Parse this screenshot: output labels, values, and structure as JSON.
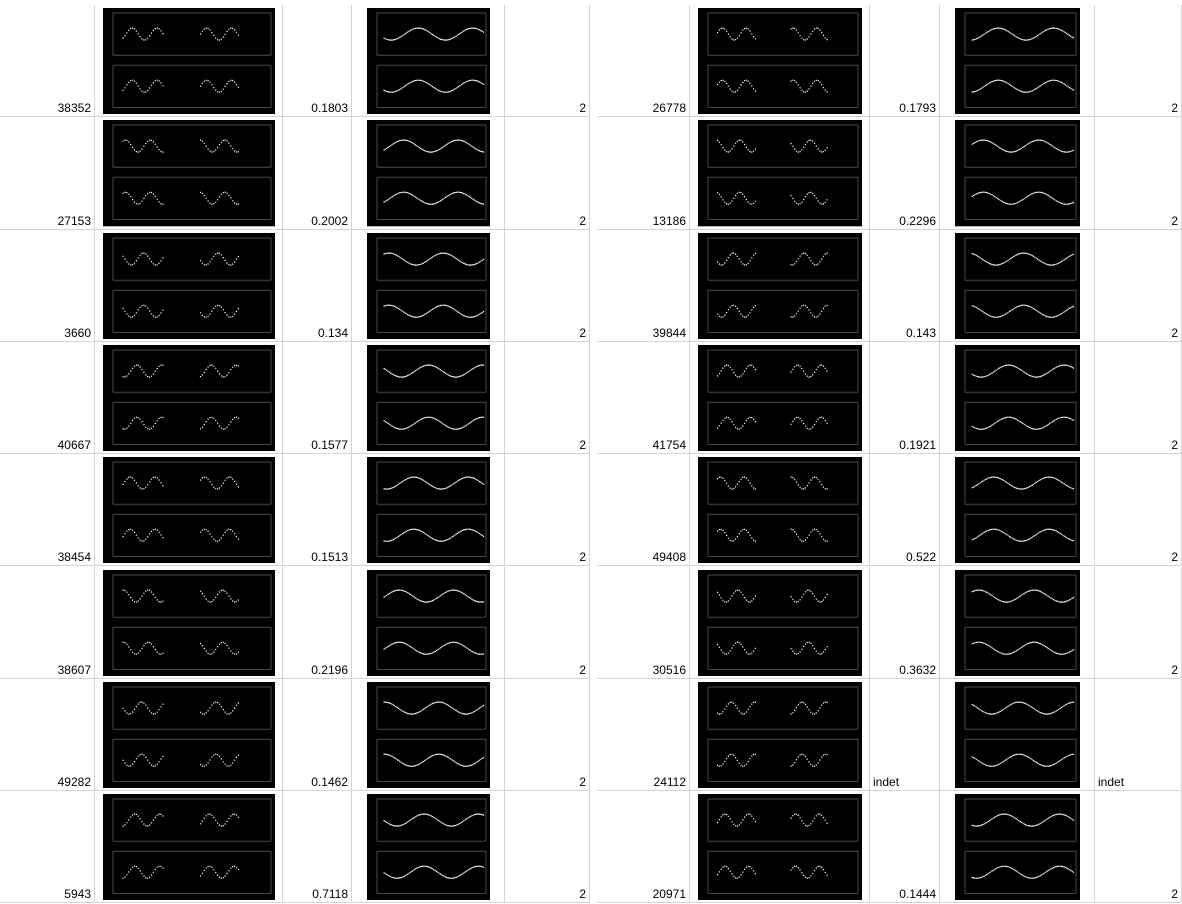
{
  "tables": [
    {
      "rows": [
        [
          38352,
          0.1803,
          2
        ],
        [
          27153,
          0.2002,
          2
        ],
        [
          3660,
          0.134,
          2
        ],
        [
          40667,
          0.1577,
          2
        ],
        [
          38454,
          0.1513,
          2
        ],
        [
          38607,
          0.2196,
          2
        ],
        [
          49282,
          0.1462,
          2
        ],
        [
          5943,
          0.7118,
          2
        ]
      ]
    },
    {
      "rows": [
        [
          26778,
          0.1793,
          2
        ],
        [
          13186,
          0.2296,
          2
        ],
        [
          39844,
          0.143,
          2
        ],
        [
          41754,
          0.1921,
          2
        ],
        [
          49408,
          0.522,
          2
        ],
        [
          30516,
          0.3632,
          2
        ],
        [
          24112,
          "indet",
          "indet"
        ],
        [
          20971,
          0.1444,
          2
        ]
      ]
    }
  ]
}
